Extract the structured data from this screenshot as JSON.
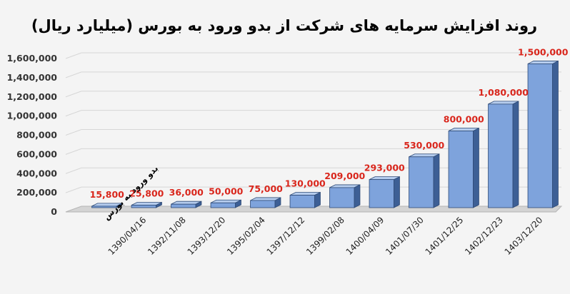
{
  "chart_data": {
    "type": "bar",
    "title": "روند افزایش سرمایه های شرکت از بدو ورود به بورس (میلیارد ریال)",
    "categories": [
      "بدو ورود به بورس",
      "1390/04/16",
      "1392/11/08",
      "1393/12/20",
      "1395/02/04",
      "1397/12/12",
      "1399/02/08",
      "1400/04/09",
      "1401/07/30",
      "1401/12/25",
      "1402/12/23",
      "1403/12/20"
    ],
    "values": [
      15800,
      25800,
      36000,
      50000,
      75000,
      130000,
      209000,
      293000,
      530000,
      800000,
      1080000,
      1500000
    ],
    "value_labels": [
      "15,800",
      "25,800",
      "36,000",
      "50,000",
      "75,000",
      "130,000",
      "209,000",
      "293,000",
      "530,000",
      "800,000",
      "1,080,000",
      "1,500,000"
    ],
    "ylim": [
      0,
      1600000
    ],
    "yticks": [
      "0",
      "200,000",
      "400,000",
      "600,000",
      "800,000",
      "1,000,000",
      "1,200,000",
      "1,400,000",
      "1,600,000"
    ],
    "grid": true,
    "colors": {
      "bar_front": "#7ea3dc",
      "bar_side": "#3d5f95",
      "bar_top": "#b6cdee",
      "label": "#d9261c",
      "grid": "#d6d6d6",
      "floor": "#b5b5b5"
    }
  }
}
